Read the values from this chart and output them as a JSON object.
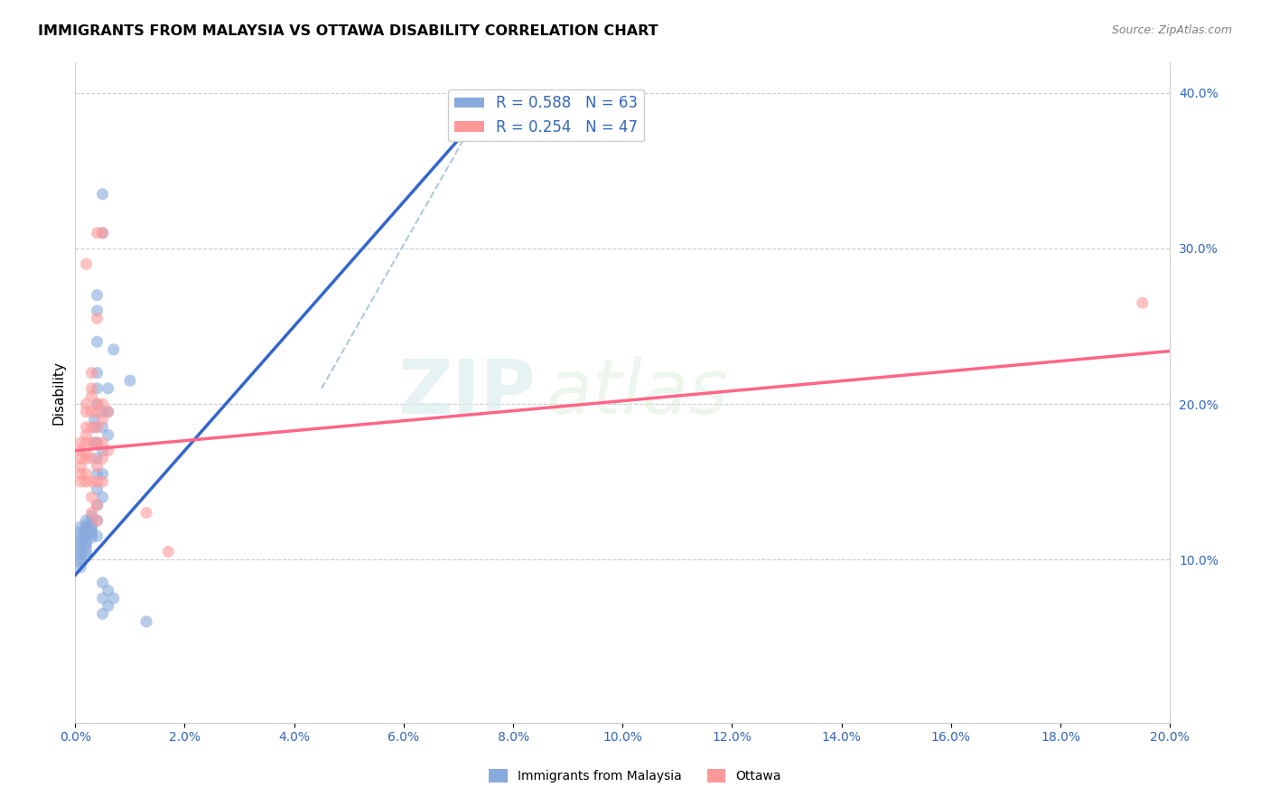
{
  "title": "IMMIGRANTS FROM MALAYSIA VS OTTAWA DISABILITY CORRELATION CHART",
  "source": "Source: ZipAtlas.com",
  "ylabel": "Disability",
  "xlim": [
    0.0,
    20.0
  ],
  "ylim": [
    -0.5,
    42.0
  ],
  "legend1_r": "0.588",
  "legend1_n": "63",
  "legend2_r": "0.254",
  "legend2_n": "47",
  "blue_color": "#88AADD",
  "pink_color": "#FF9999",
  "blue_line_color": "#3366CC",
  "pink_line_color": "#FF6688",
  "dashed_line_color": "#AACCDD",
  "blue_scatter": [
    [
      0.1,
      12.1
    ],
    [
      0.1,
      11.8
    ],
    [
      0.1,
      11.5
    ],
    [
      0.1,
      11.3
    ],
    [
      0.1,
      11.0
    ],
    [
      0.1,
      10.8
    ],
    [
      0.1,
      10.5
    ],
    [
      0.1,
      10.3
    ],
    [
      0.1,
      10.0
    ],
    [
      0.1,
      9.8
    ],
    [
      0.1,
      9.5
    ],
    [
      0.2,
      12.5
    ],
    [
      0.2,
      12.2
    ],
    [
      0.2,
      12.0
    ],
    [
      0.2,
      11.8
    ],
    [
      0.2,
      11.5
    ],
    [
      0.2,
      11.2
    ],
    [
      0.2,
      11.0
    ],
    [
      0.2,
      10.8
    ],
    [
      0.2,
      10.5
    ],
    [
      0.2,
      10.2
    ],
    [
      0.3,
      12.8
    ],
    [
      0.3,
      12.5
    ],
    [
      0.3,
      12.2
    ],
    [
      0.3,
      12.0
    ],
    [
      0.3,
      11.8
    ],
    [
      0.3,
      11.6
    ],
    [
      0.3,
      11.4
    ],
    [
      0.35,
      17.5
    ],
    [
      0.35,
      18.5
    ],
    [
      0.35,
      19.0
    ],
    [
      0.4,
      26.0
    ],
    [
      0.4,
      27.0
    ],
    [
      0.4,
      24.0
    ],
    [
      0.4,
      22.0
    ],
    [
      0.4,
      21.0
    ],
    [
      0.4,
      20.0
    ],
    [
      0.4,
      17.5
    ],
    [
      0.4,
      16.5
    ],
    [
      0.4,
      15.5
    ],
    [
      0.4,
      14.5
    ],
    [
      0.4,
      13.5
    ],
    [
      0.4,
      12.5
    ],
    [
      0.4,
      11.5
    ],
    [
      0.5,
      33.5
    ],
    [
      0.5,
      31.0
    ],
    [
      0.5,
      19.5
    ],
    [
      0.5,
      18.5
    ],
    [
      0.5,
      17.0
    ],
    [
      0.5,
      15.5
    ],
    [
      0.5,
      14.0
    ],
    [
      0.5,
      8.5
    ],
    [
      0.5,
      7.5
    ],
    [
      0.5,
      6.5
    ],
    [
      0.6,
      21.0
    ],
    [
      0.6,
      19.5
    ],
    [
      0.6,
      18.0
    ],
    [
      0.6,
      8.0
    ],
    [
      0.6,
      7.0
    ],
    [
      0.7,
      23.5
    ],
    [
      0.7,
      7.5
    ],
    [
      1.0,
      21.5
    ],
    [
      1.3,
      6.0
    ]
  ],
  "pink_scatter": [
    [
      0.1,
      17.5
    ],
    [
      0.1,
      17.0
    ],
    [
      0.1,
      16.5
    ],
    [
      0.1,
      16.0
    ],
    [
      0.1,
      15.5
    ],
    [
      0.1,
      15.0
    ],
    [
      0.2,
      29.0
    ],
    [
      0.2,
      20.0
    ],
    [
      0.2,
      19.5
    ],
    [
      0.2,
      18.5
    ],
    [
      0.2,
      18.0
    ],
    [
      0.2,
      17.5
    ],
    [
      0.2,
      16.8
    ],
    [
      0.2,
      16.5
    ],
    [
      0.2,
      15.5
    ],
    [
      0.2,
      15.0
    ],
    [
      0.3,
      22.0
    ],
    [
      0.3,
      21.0
    ],
    [
      0.3,
      20.5
    ],
    [
      0.3,
      19.5
    ],
    [
      0.3,
      18.5
    ],
    [
      0.3,
      17.5
    ],
    [
      0.3,
      16.5
    ],
    [
      0.3,
      15.0
    ],
    [
      0.3,
      14.0
    ],
    [
      0.3,
      13.0
    ],
    [
      0.4,
      31.0
    ],
    [
      0.4,
      25.5
    ],
    [
      0.4,
      20.0
    ],
    [
      0.4,
      19.5
    ],
    [
      0.4,
      18.5
    ],
    [
      0.4,
      17.5
    ],
    [
      0.4,
      16.0
    ],
    [
      0.4,
      15.0
    ],
    [
      0.4,
      13.5
    ],
    [
      0.4,
      12.5
    ],
    [
      0.5,
      31.0
    ],
    [
      0.5,
      20.0
    ],
    [
      0.5,
      19.0
    ],
    [
      0.5,
      17.5
    ],
    [
      0.5,
      16.5
    ],
    [
      0.5,
      15.0
    ],
    [
      0.6,
      19.5
    ],
    [
      0.6,
      17.0
    ],
    [
      1.3,
      13.0
    ],
    [
      1.7,
      10.5
    ],
    [
      19.5,
      26.5
    ]
  ],
  "blue_line_x": [
    0.0,
    7.0
  ],
  "blue_line_slope": 4.0,
  "blue_line_intercept": 9.0,
  "pink_line_x": [
    0.0,
    20.0
  ],
  "pink_line_slope": 0.32,
  "pink_line_intercept": 17.0,
  "dashed_line_x": [
    4.5,
    7.5
  ],
  "dashed_line_y": [
    21.0,
    39.5
  ]
}
